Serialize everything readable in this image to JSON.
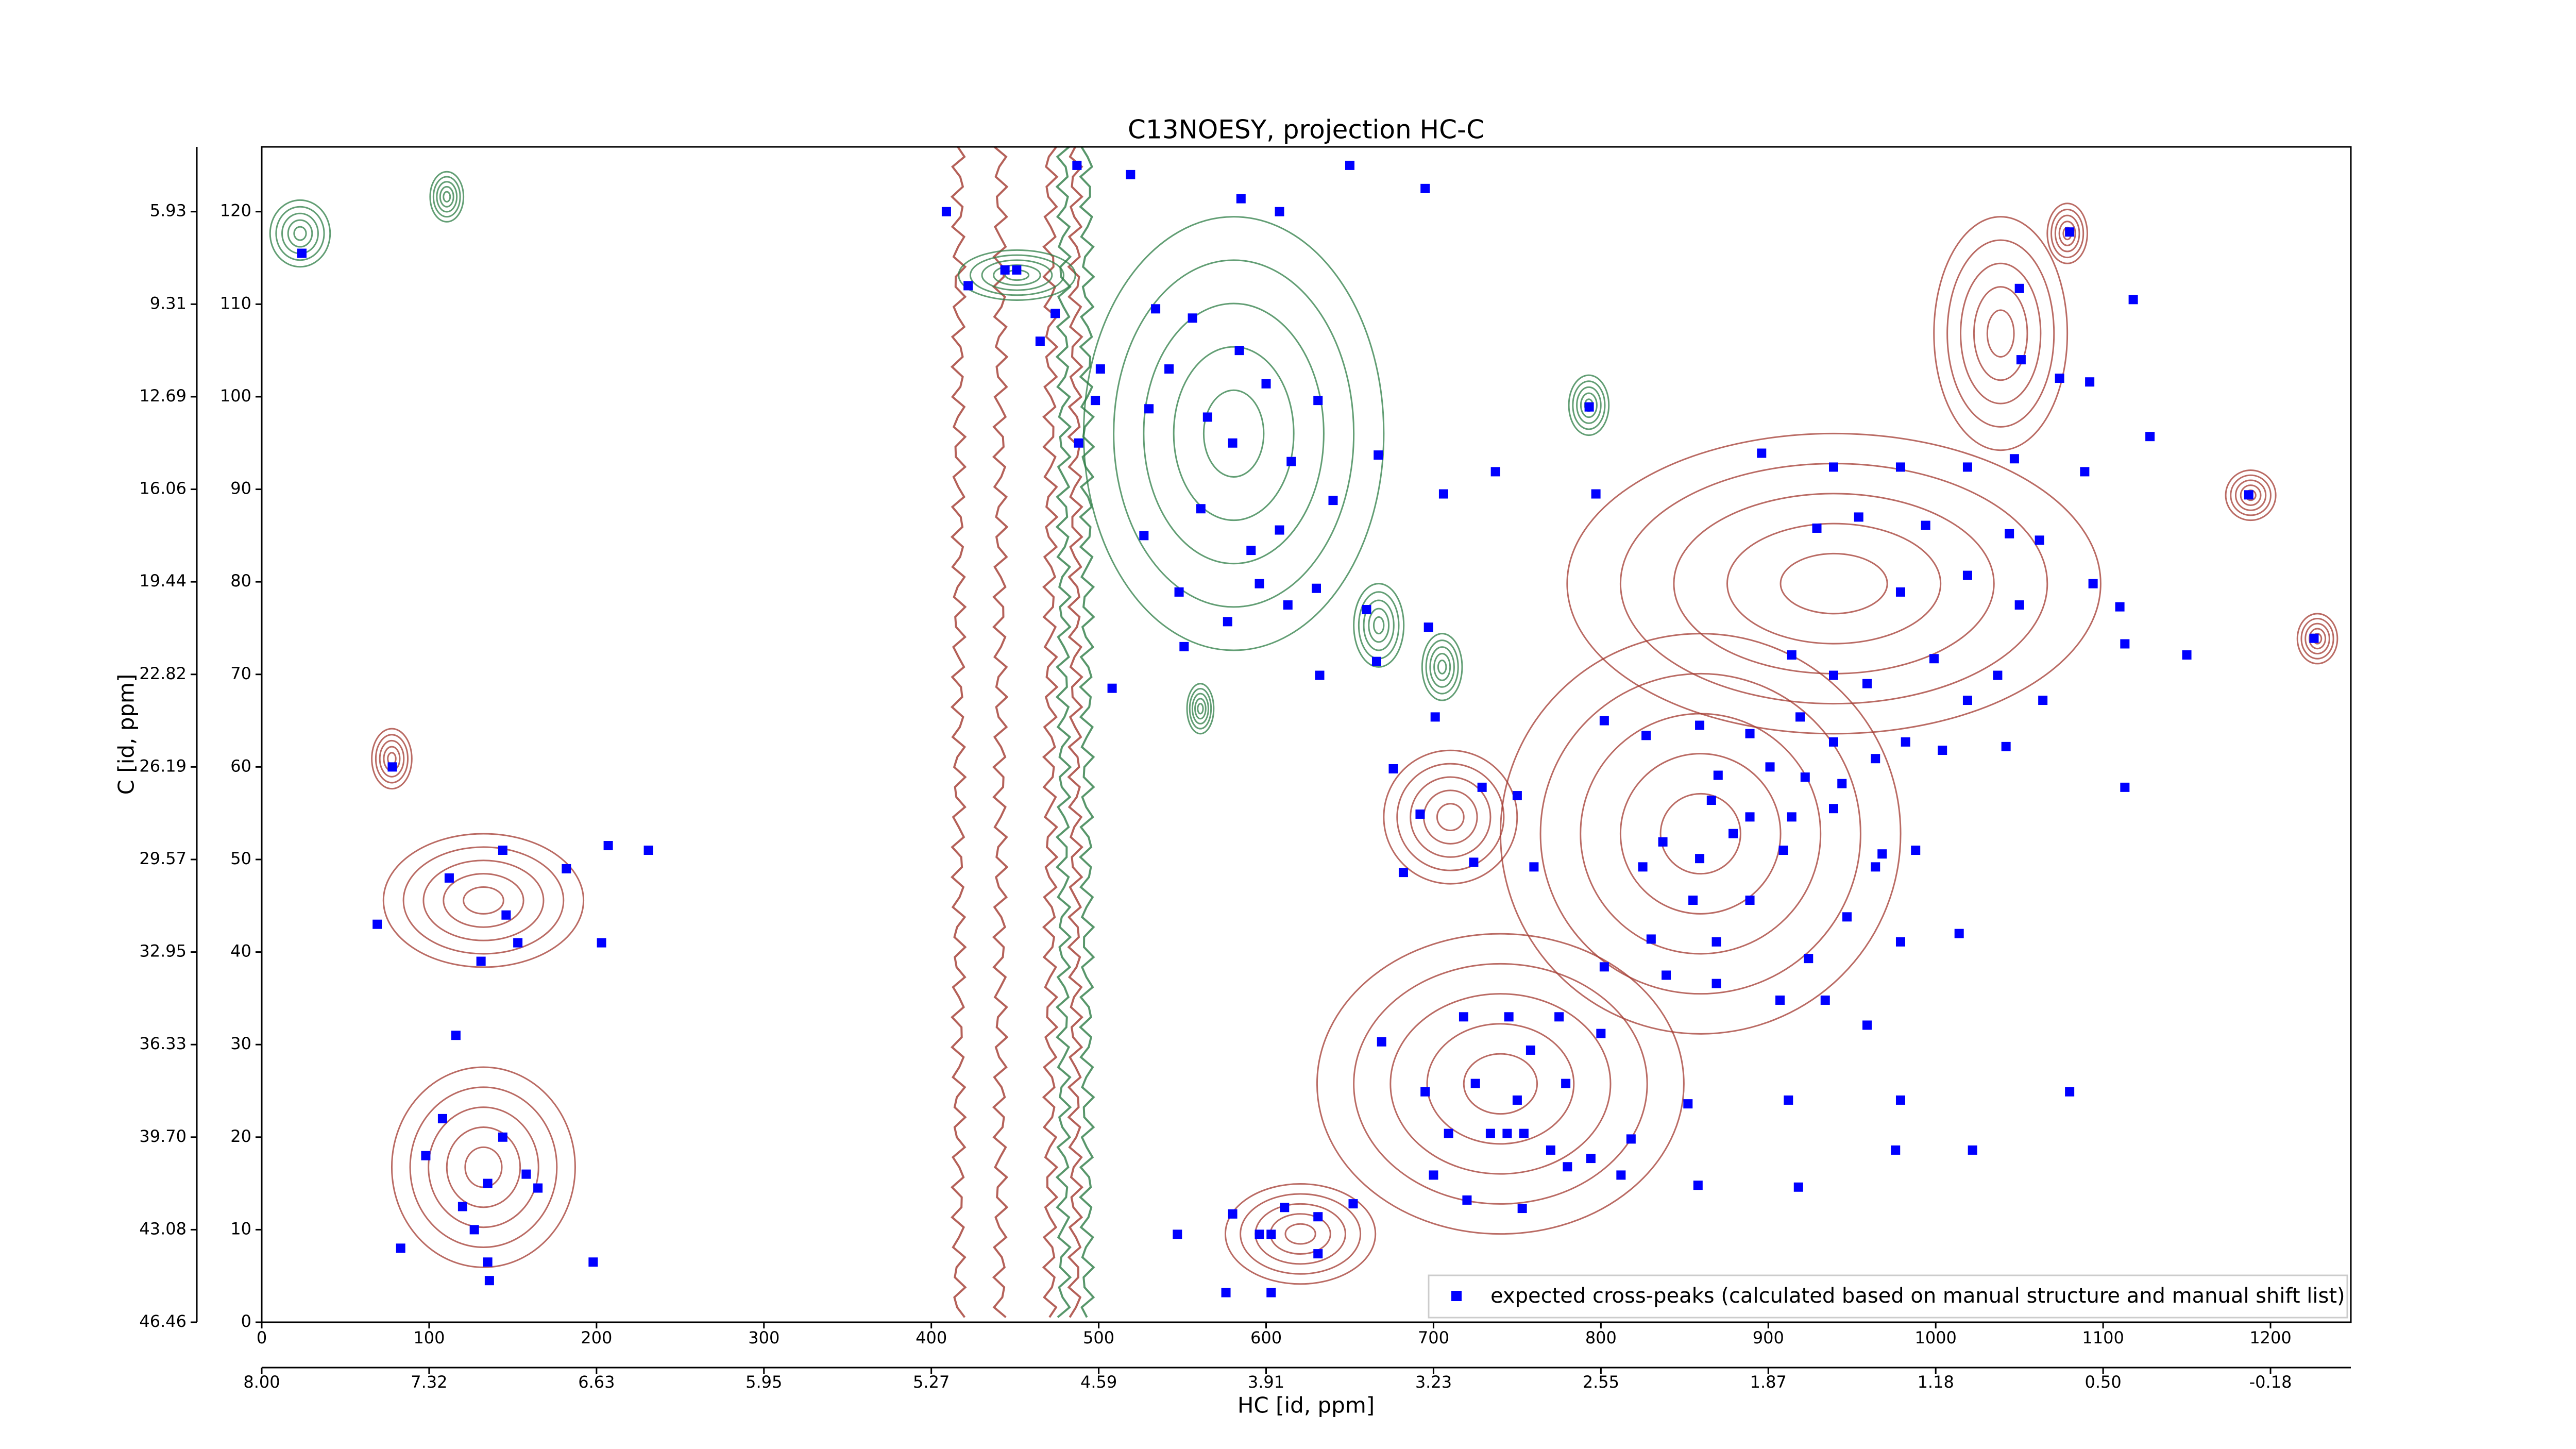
{
  "chart_data": {
    "type": "scatter",
    "title": "C13NOESY, projection HC-C",
    "x_label": "HC [id, ppm]",
    "y_label": "C [id, ppm]",
    "xlim": [
      0,
      1248
    ],
    "ylim": [
      0,
      127
    ],
    "xticks": [
      0,
      100,
      200,
      300,
      400,
      500,
      600,
      700,
      800,
      900,
      1000,
      1100,
      1200
    ],
    "yticks": [
      0,
      10,
      20,
      30,
      40,
      50,
      60,
      70,
      80,
      90,
      100,
      110,
      120
    ],
    "x2ticks": [
      {
        "value": 0,
        "label": "8.00"
      },
      {
        "value": 100,
        "label": "7.32"
      },
      {
        "value": 200,
        "label": "6.63"
      },
      {
        "value": 300,
        "label": "5.95"
      },
      {
        "value": 400,
        "label": "5.27"
      },
      {
        "value": 500,
        "label": "4.59"
      },
      {
        "value": 600,
        "label": "3.91"
      },
      {
        "value": 700,
        "label": "3.23"
      },
      {
        "value": 800,
        "label": "2.55"
      },
      {
        "value": 900,
        "label": "1.87"
      },
      {
        "value": 1000,
        "label": "1.18"
      },
      {
        "value": 1100,
        "label": "0.50"
      },
      {
        "value": 1200,
        "label": "-0.18"
      }
    ],
    "y2ticks": [
      {
        "value": 120,
        "label": "5.93"
      },
      {
        "value": 110,
        "label": "9.31"
      },
      {
        "value": 100,
        "label": "12.69"
      },
      {
        "value": 90,
        "label": "16.06"
      },
      {
        "value": 80,
        "label": "19.44"
      },
      {
        "value": 70,
        "label": "22.82"
      },
      {
        "value": 60,
        "label": "26.19"
      },
      {
        "value": 50,
        "label": "29.57"
      },
      {
        "value": 40,
        "label": "32.95"
      },
      {
        "value": 30,
        "label": "36.33"
      },
      {
        "value": 20,
        "label": "39.70"
      },
      {
        "value": 10,
        "label": "43.08"
      },
      {
        "value": 0,
        "label": "46.46"
      }
    ],
    "legend": "lower right",
    "series": [
      {
        "name": "expected cross-peaks (calculated based on manual structure and manual shift list)",
        "color": "#0000ff",
        "x": [
          24,
          78,
          69,
          112,
          144,
          146,
          131,
          153,
          182,
          207,
          203,
          231,
          116,
          108,
          98,
          144,
          135,
          158,
          165,
          120,
          127,
          83,
          135,
          136,
          198,
          409,
          422,
          444,
          451,
          487,
          519,
          585,
          608,
          695,
          650,
          474,
          465,
          534,
          556,
          584,
          501,
          542,
          498,
          530,
          565,
          600,
          631,
          793,
          488,
          580,
          615,
          667,
          737,
          797,
          706,
          527,
          561,
          591,
          608,
          640,
          548,
          596,
          630,
          660,
          577,
          613,
          697,
          551,
          632,
          666,
          508,
          1080,
          1050,
          1118,
          1051,
          1074,
          1092,
          1128,
          896,
          939,
          979,
          1019,
          1047,
          1089,
          1187,
          929,
          954,
          994,
          1044,
          1062,
          979,
          1019,
          1050,
          1094,
          1110,
          1226,
          1150,
          1113,
          914,
          939,
          959,
          999,
          1037,
          1064,
          1019,
          802,
          827,
          859,
          889,
          919,
          939,
          964,
          982,
          1004,
          1042,
          870,
          901,
          922,
          944,
          866,
          889,
          914,
          939,
          879,
          909,
          837,
          825,
          859,
          964,
          988,
          855,
          889,
          947,
          979,
          1014,
          830,
          869,
          802,
          839,
          869,
          907,
          934,
          959,
          924,
          676,
          701,
          729,
          750,
          692,
          724,
          760,
          682,
          718,
          669,
          695,
          745,
          775,
          758,
          800,
          725,
          750,
          779,
          852,
          912,
          979,
          709,
          734,
          744,
          754,
          770,
          794,
          818,
          700,
          720,
          780,
          812,
          858,
          918,
          976,
          1022,
          1080,
          1113,
          968,
          753,
          547,
          580,
          596,
          603,
          611,
          631,
          631,
          652,
          576,
          603
        ],
        "values": [
          115.5,
          60,
          43,
          48,
          51,
          44,
          39,
          41,
          49,
          51.5,
          41,
          51,
          31,
          22,
          18,
          20,
          15,
          16,
          14.5,
          12.5,
          10,
          8,
          6.5,
          4.5,
          6.5,
          120,
          112,
          113.7,
          113.7,
          125,
          124,
          121.4,
          120,
          122.5,
          125,
          109,
          106,
          109.5,
          108.5,
          105,
          103,
          103,
          99.6,
          98.7,
          97.8,
          101.4,
          99.6,
          98.9,
          95,
          95,
          93,
          93.7,
          91.9,
          89.5,
          89.5,
          85,
          87.9,
          83.4,
          85.6,
          88.8,
          78.9,
          79.8,
          79.3,
          77,
          75.7,
          77.5,
          75.1,
          73,
          69.9,
          71.4,
          68.5,
          117.8,
          111.7,
          110.5,
          104,
          102,
          101.6,
          95.7,
          93.9,
          92.4,
          92.4,
          92.4,
          93.3,
          91.9,
          89.4,
          85.8,
          87,
          86.1,
          85.2,
          84.5,
          78.9,
          80.7,
          77.5,
          79.8,
          77.3,
          73.9,
          72.1,
          73.3,
          72.1,
          69.9,
          69,
          71.7,
          69.9,
          67.2,
          67.2,
          65,
          63.4,
          64.5,
          63.6,
          65.4,
          62.7,
          60.9,
          62.7,
          61.8,
          62.2,
          59.1,
          60,
          58.9,
          58.2,
          56.4,
          54.6,
          54.6,
          55.5,
          52.8,
          51,
          51.9,
          49.2,
          50.1,
          49.2,
          51,
          45.6,
          45.6,
          43.8,
          41.1,
          42,
          41.4,
          41.1,
          38.4,
          37.5,
          36.6,
          34.8,
          34.8,
          32.1,
          39.3,
          59.8,
          65.4,
          57.8,
          56.9,
          54.9,
          49.7,
          49.2,
          48.6,
          33,
          30.3,
          24.9,
          33,
          33,
          29.4,
          31.2,
          25.8,
          24,
          25.8,
          23.6,
          24,
          24,
          20.4,
          20.4,
          20.4,
          20.4,
          18.6,
          17.7,
          19.8,
          15.9,
          13.2,
          16.8,
          15.9,
          14.8,
          14.6,
          18.6,
          18.6,
          24.9,
          57.8,
          50.6,
          12.3,
          9.5,
          11.7,
          9.5,
          9.5,
          12.4,
          11.4,
          7.4,
          12.8,
          3.2,
          3.2
        ]
      }
    ]
  }
}
